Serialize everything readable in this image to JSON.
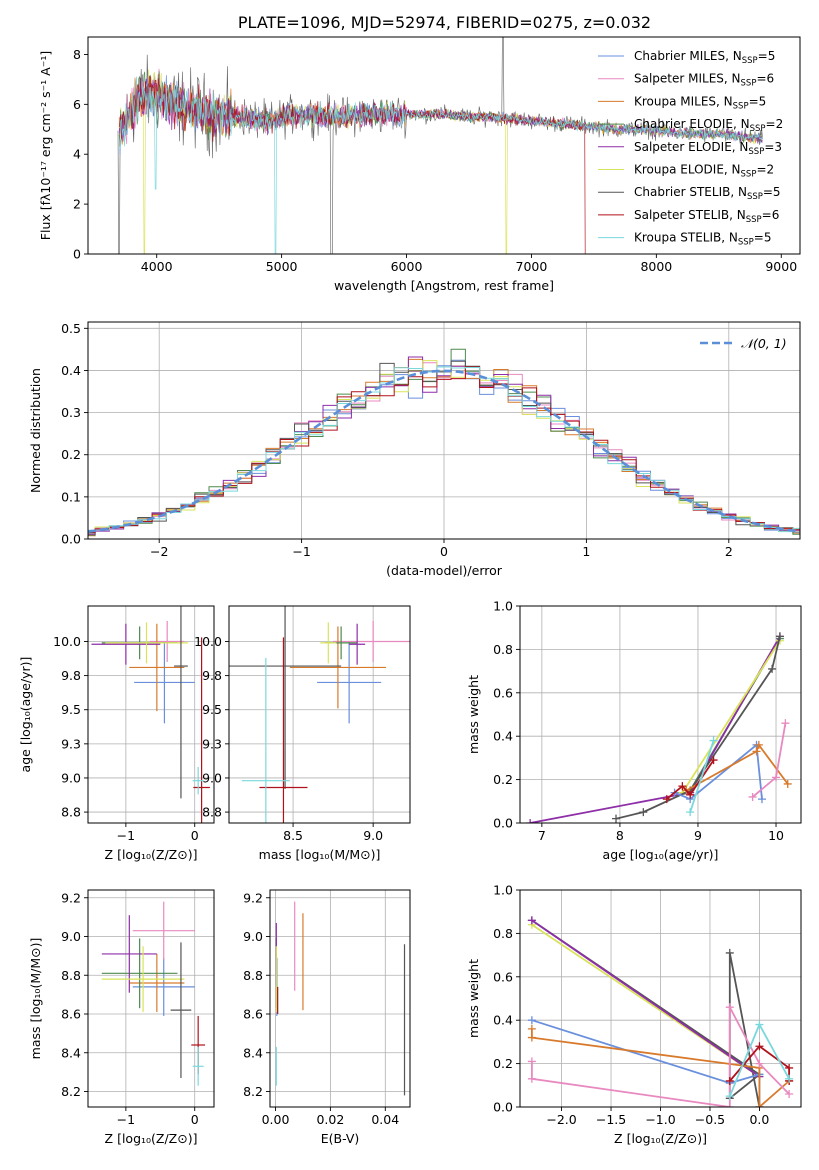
{
  "figure": {
    "title": "PLATE=1096, MJD=52974, FIBERID=0275, z=0.032"
  },
  "series_styles": [
    {
      "name": "Chabrier MILES",
      "n_ssp": "5",
      "color": "#6a8fdc"
    },
    {
      "name": "Salpeter MILES",
      "n_ssp": "6",
      "color": "#e889c0"
    },
    {
      "name": "Kroupa MILES",
      "n_ssp": "5",
      "color": "#d87a2c"
    },
    {
      "name": "Chabrier ELODIE",
      "n_ssp": "2",
      "color": "#4e8a4e"
    },
    {
      "name": "Salpeter ELODIE",
      "n_ssp": "3",
      "color": "#8e2ea8"
    },
    {
      "name": "Kroupa ELODIE",
      "n_ssp": "2",
      "color": "#d9e35a"
    },
    {
      "name": "Chabrier STELIB",
      "n_ssp": "5",
      "color": "#555555"
    },
    {
      "name": "Salpeter STELIB",
      "n_ssp": "6",
      "color": "#b0121b"
    },
    {
      "name": "Kroupa STELIB",
      "n_ssp": "5",
      "color": "#7ad8dc"
    }
  ],
  "chart_data": [
    {
      "type": "line",
      "id": "spectrum",
      "xlabel": "wavelength [Angstrom, rest frame]",
      "ylabel": "Flux [fλ10⁻¹⁷ erg cm⁻² s⁻¹ A⁻¹]",
      "xlim": [
        3450,
        9150
      ],
      "ylim": [
        0,
        8.7
      ],
      "xticks": [
        4000,
        5000,
        6000,
        7000,
        8000,
        9000
      ],
      "yticks": [
        0,
        2,
        4,
        6,
        8
      ],
      "x": [
        3700,
        3850,
        4000,
        4150,
        4300,
        4500,
        4700,
        4900,
        5100,
        5300,
        5500,
        5700,
        5900,
        6100,
        6300,
        6500,
        6700,
        6900,
        7100,
        7300,
        7500,
        7700,
        7900,
        8100,
        8300,
        8500,
        8700,
        8850
      ],
      "y_approx": [
        4.8,
        6.2,
        6.4,
        6.0,
        5.8,
        5.5,
        5.5,
        5.3,
        5.6,
        5.6,
        5.5,
        5.6,
        5.6,
        5.6,
        5.6,
        5.5,
        5.5,
        5.4,
        5.3,
        5.2,
        5.1,
        5.0,
        5.0,
        4.9,
        4.8,
        4.8,
        4.7,
        4.6
      ],
      "legend": "upper right"
    },
    {
      "type": "histogram",
      "id": "residuals",
      "xlabel": "(data-model)/error",
      "ylabel": "Normed distribution",
      "xlim": [
        -2.5,
        2.5
      ],
      "ylim": [
        0,
        0.515
      ],
      "xticks": [
        -2,
        -1,
        0,
        1,
        2
      ],
      "yticks": [
        0.0,
        0.1,
        0.2,
        0.3,
        0.4,
        0.5
      ],
      "reference": {
        "label": "𝒩(0, 1)",
        "mean": 0,
        "sigma": 1,
        "color": "#5b8fd8"
      },
      "bin_width": 0.1,
      "legend": "upper right"
    },
    {
      "type": "errorbar",
      "id": "age-vs-z",
      "xlabel": "Z [log₁₀(Z/Z⊙)]",
      "ylabel": "age  [log₁₀(age/yr)]",
      "xlim": [
        -1.55,
        0.28
      ],
      "ylim": [
        8.67,
        10.26
      ],
      "xticks": [
        -1,
        0
      ],
      "yticks": [
        8.75,
        9.0,
        9.25,
        9.5,
        9.75,
        10.0
      ],
      "points": [
        {
          "x": -0.44,
          "y": 9.7,
          "xerr": 0.44,
          "yerr": 0.3,
          "color": "#6a8fdc"
        },
        {
          "x": -0.4,
          "y": 10.0,
          "xerr": 0.25,
          "yerr": 0.15,
          "color": "#e889c0"
        },
        {
          "x": -0.55,
          "y": 9.81,
          "xerr": 0.4,
          "yerr": 0.32,
          "color": "#d87a2c"
        },
        {
          "x": -0.8,
          "y": 9.99,
          "xerr": 0.55,
          "yerr": 0.12,
          "color": "#4e8a4e"
        },
        {
          "x": -1.0,
          "y": 9.98,
          "xerr": 0.5,
          "yerr": 0.15,
          "color": "#8e2ea8"
        },
        {
          "x": -0.7,
          "y": 9.99,
          "xerr": 0.6,
          "yerr": 0.15,
          "color": "#d9e35a"
        },
        {
          "x": -0.2,
          "y": 9.82,
          "xerr": 0.1,
          "yerr": 0.97,
          "color": "#555555"
        },
        {
          "x": 0.1,
          "y": 8.93,
          "xerr": 0.12,
          "yerr": 1.1,
          "color": "#b0121b"
        },
        {
          "x": 0.05,
          "y": 8.98,
          "xerr": 0.08,
          "yerr": 0.1,
          "color": "#7ad8dc"
        }
      ]
    },
    {
      "type": "errorbar",
      "id": "age-vs-mass",
      "xlabel": "mass [log₁₀(M/M⊙)]",
      "ylabel": "",
      "xlim": [
        8.1,
        9.23
      ],
      "ylim": [
        8.67,
        10.26
      ],
      "xticks": [
        8.5,
        9.0
      ],
      "yticks": [
        8.75,
        9.0,
        9.25,
        9.5,
        9.75,
        10.0
      ],
      "points": [
        {
          "x": 8.85,
          "y": 9.7,
          "xerr": 0.2,
          "yerr": 0.3,
          "color": "#6a8fdc"
        },
        {
          "x": 9.0,
          "y": 10.0,
          "xerr": 0.25,
          "yerr": 0.15,
          "color": "#e889c0"
        },
        {
          "x": 8.78,
          "y": 9.81,
          "xerr": 0.3,
          "yerr": 0.3,
          "color": "#d87a2c"
        },
        {
          "x": 8.8,
          "y": 9.99,
          "xerr": 0.1,
          "yerr": 0.12,
          "color": "#4e8a4e"
        },
        {
          "x": 8.9,
          "y": 9.98,
          "xerr": 0.05,
          "yerr": 0.15,
          "color": "#8e2ea8"
        },
        {
          "x": 8.72,
          "y": 9.99,
          "xerr": 0.05,
          "yerr": 0.15,
          "color": "#d9e35a"
        },
        {
          "x": 8.45,
          "y": 9.82,
          "xerr": 0.35,
          "yerr": 0.9,
          "color": "#555555"
        },
        {
          "x": 8.44,
          "y": 8.93,
          "xerr": 0.15,
          "yerr": 1.1,
          "color": "#b0121b"
        },
        {
          "x": 8.33,
          "y": 8.98,
          "xerr": 0.15,
          "yerr": 0.9,
          "color": "#7ad8dc"
        }
      ]
    },
    {
      "type": "line",
      "id": "massweight-vs-age",
      "xlabel": "age  [log₁₀(age/yr)]",
      "ylabel": "mass weight",
      "xlim": [
        6.72,
        10.32
      ],
      "ylim": [
        0,
        1.0
      ],
      "xticks": [
        7,
        8,
        9,
        10
      ],
      "yticks": [
        0.0,
        0.2,
        0.4,
        0.6,
        0.8,
        1.0
      ],
      "series": [
        {
          "color": "#4e8a4e",
          "x": [
            8.9,
            10.05
          ],
          "y": [
            0.15,
            0.85
          ]
        },
        {
          "color": "#8e2ea8",
          "x": [
            6.85,
            8.9,
            10.05
          ],
          "y": [
            0.0,
            0.14,
            0.86
          ]
        },
        {
          "color": "#d9e35a",
          "x": [
            8.8,
            10.05
          ],
          "y": [
            0.14,
            0.84
          ]
        },
        {
          "color": "#555555",
          "x": [
            7.95,
            8.3,
            8.9,
            9.95,
            10.05
          ],
          "y": [
            0.02,
            0.05,
            0.15,
            0.71,
            0.86
          ]
        },
        {
          "color": "#6a8fdc",
          "x": [
            8.7,
            8.9,
            9.75,
            9.82
          ],
          "y": [
            0.14,
            0.11,
            0.36,
            0.11
          ]
        },
        {
          "color": "#d87a2c",
          "x": [
            8.85,
            9.75,
            9.78,
            10.15
          ],
          "y": [
            0.15,
            0.33,
            0.36,
            0.18
          ]
        },
        {
          "color": "#e889c0",
          "x": [
            9.7,
            10.0,
            10.12
          ],
          "y": [
            0.12,
            0.21,
            0.46
          ]
        },
        {
          "color": "#b0121b",
          "x": [
            8.6,
            8.8,
            8.9,
            9.2
          ],
          "y": [
            0.11,
            0.17,
            0.13,
            0.29
          ]
        },
        {
          "color": "#7ad8dc",
          "x": [
            8.9,
            9.2
          ],
          "y": [
            0.05,
            0.38
          ]
        }
      ]
    },
    {
      "type": "errorbar",
      "id": "mass-vs-z",
      "xlabel": "Z [log₁₀(Z/Z⊙)]",
      "ylabel": "mass [log₁₀(M/M⊙)]",
      "xlim": [
        -1.55,
        0.28
      ],
      "ylim": [
        8.12,
        9.24
      ],
      "xticks": [
        -1,
        0
      ],
      "yticks": [
        8.2,
        8.4,
        8.6,
        8.8,
        9.0,
        9.2
      ],
      "points": [
        {
          "x": -0.45,
          "y": 8.74,
          "xerr": 0.45,
          "yerr": 0.15,
          "color": "#6a8fdc"
        },
        {
          "x": -0.45,
          "y": 9.03,
          "xerr": 0.45,
          "yerr": 0.15,
          "color": "#e889c0"
        },
        {
          "x": -0.55,
          "y": 8.76,
          "xerr": 0.4,
          "yerr": 0.15,
          "color": "#d87a2c"
        },
        {
          "x": -0.8,
          "y": 8.81,
          "xerr": 0.55,
          "yerr": 0.18,
          "color": "#4e8a4e"
        },
        {
          "x": -0.95,
          "y": 8.91,
          "xerr": 0.4,
          "yerr": 0.2,
          "color": "#8e2ea8"
        },
        {
          "x": -0.75,
          "y": 8.78,
          "xerr": 0.6,
          "yerr": 0.17,
          "color": "#d9e35a"
        },
        {
          "x": -0.2,
          "y": 8.62,
          "xerr": 0.15,
          "yerr": 0.35,
          "color": "#555555"
        },
        {
          "x": 0.05,
          "y": 8.44,
          "xerr": 0.1,
          "yerr": 0.15,
          "color": "#b0121b"
        },
        {
          "x": 0.05,
          "y": 8.33,
          "xerr": 0.08,
          "yerr": 0.1,
          "color": "#7ad8dc"
        }
      ]
    },
    {
      "type": "errorbar",
      "id": "mass-vs-ebv",
      "xlabel": "E(B-V)",
      "ylabel": "",
      "xlim": [
        -0.002,
        0.049
      ],
      "ylim": [
        8.12,
        9.24
      ],
      "xticks": [
        0.0,
        0.02,
        0.04
      ],
      "yticks": [
        8.2,
        8.4,
        8.6,
        8.8,
        9.0,
        9.2
      ],
      "points": [
        {
          "x": 0.0005,
          "y": 8.74,
          "xerr": 0,
          "yerr": 0.15,
          "color": "#6a8fdc"
        },
        {
          "x": 0.007,
          "y": 8.95,
          "xerr": 0,
          "yerr": 0.23,
          "color": "#e889c0"
        },
        {
          "x": 0.01,
          "y": 8.87,
          "xerr": 0,
          "yerr": 0.25,
          "color": "#d87a2c"
        },
        {
          "x": 0.0003,
          "y": 8.81,
          "xerr": 0,
          "yerr": 0.18,
          "color": "#4e8a4e"
        },
        {
          "x": 0.0003,
          "y": 8.91,
          "xerr": 0,
          "yerr": 0.16,
          "color": "#8e2ea8"
        },
        {
          "x": 0.0003,
          "y": 8.78,
          "xerr": 0,
          "yerr": 0.17,
          "color": "#d9e35a"
        },
        {
          "x": 0.047,
          "y": 8.57,
          "xerr": 0,
          "yerr": 0.39,
          "color": "#555555"
        },
        {
          "x": 0.0008,
          "y": 8.67,
          "xerr": 0,
          "yerr": 0.07,
          "color": "#b0121b"
        },
        {
          "x": 0.0003,
          "y": 8.33,
          "xerr": 0,
          "yerr": 0.1,
          "color": "#7ad8dc"
        }
      ]
    },
    {
      "type": "line",
      "id": "massweight-vs-z",
      "xlabel": "Z [log₁₀(Z/Z⊙)]",
      "ylabel": "mass weight",
      "xlim": [
        -2.42,
        0.42
      ],
      "ylim": [
        0,
        1.0
      ],
      "xticks": [
        -2.0,
        -1.5,
        -1.0,
        -0.5,
        0.0
      ],
      "yticks": [
        0.0,
        0.2,
        0.4,
        0.6,
        0.8,
        1.0
      ],
      "series": [
        {
          "color": "#555555",
          "x": [
            -2.3,
            0.0,
            -0.3,
            -0.3,
            0.0
          ],
          "y": [
            0.86,
            0.15,
            0.04,
            0.71,
            0.0
          ]
        },
        {
          "color": "#d9e35a",
          "x": [
            -2.3,
            0.0
          ],
          "y": [
            0.84,
            0.14
          ]
        },
        {
          "color": "#8e2ea8",
          "x": [
            -2.3,
            0.0
          ],
          "y": [
            0.86,
            0.14
          ]
        },
        {
          "color": "#6a8fdc",
          "x": [
            -2.3,
            -0.3,
            0.0,
            0.0
          ],
          "y": [
            0.4,
            0.11,
            0.15,
            0.0
          ]
        },
        {
          "color": "#d87a2c",
          "x": [
            -2.3,
            -2.3,
            0.0,
            0.0,
            0.3
          ],
          "y": [
            0.36,
            0.32,
            0.18,
            0.0,
            0.12
          ]
        },
        {
          "color": "#e889c0",
          "x": [
            -2.3,
            -2.3,
            -0.3,
            -0.3,
            0.0,
            0.3
          ],
          "y": [
            0.21,
            0.13,
            0.0,
            0.46,
            0.2,
            0.06
          ]
        },
        {
          "color": "#b0121b",
          "x": [
            -0.3,
            0.0,
            0.3,
            0.3
          ],
          "y": [
            0.12,
            0.28,
            0.18,
            0.12
          ]
        },
        {
          "color": "#7ad8dc",
          "x": [
            -0.3,
            0.0,
            0.3
          ],
          "y": [
            0.05,
            0.38,
            0.13
          ]
        }
      ]
    }
  ]
}
